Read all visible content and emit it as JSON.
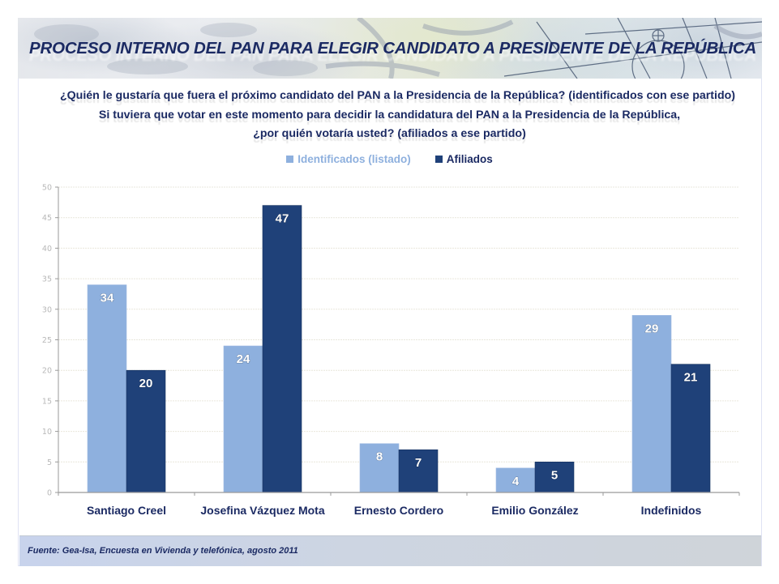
{
  "banner": {
    "title": "PROCESO INTERNO DEL PAN PARA ELEGIR CANDIDATO A PRESIDENTE DE LA REPÚBLICA"
  },
  "questions": {
    "line1": "¿Quién le gustaría que fuera el próximo candidato del PAN a la Presidencia de la República? (identificados con ese partido)",
    "line2": "Si tuviera que votar en este momento para decidir la candidatura del PAN a la Presidencia de la República,",
    "line3": "¿por quién votaría usted? (afiliados a ese partido)"
  },
  "legend": {
    "items": [
      {
        "label": "Identificados (listado)",
        "color": "#8eb0de"
      },
      {
        "label": "Afiliados",
        "color": "#1f4179"
      }
    ]
  },
  "footer": {
    "source": "Fuente: Gea-Isa, Encuesta en Vivienda y telefónica, agosto 2011"
  },
  "colors": {
    "title_text": "#1b2a63",
    "series_light": "#8eb0de",
    "series_dark": "#1f4179",
    "axis_tick_text": "#b8b8b8",
    "gridline": "#e9e7dc"
  },
  "chart_data": {
    "type": "bar",
    "title": "",
    "xlabel": "",
    "ylabel": "",
    "categories": [
      "Santiago Creel",
      "Josefina Vázquez Mota",
      "Ernesto Cordero",
      "Emilio González",
      "Indefinidos"
    ],
    "series": [
      {
        "name": "Identificados (listado)",
        "values": [
          34,
          24,
          8,
          4,
          29
        ]
      },
      {
        "name": "Afiliados",
        "values": [
          20,
          47,
          7,
          5,
          21
        ]
      }
    ],
    "ylim": [
      0,
      50
    ],
    "yticks": [
      0,
      5,
      10,
      15,
      20,
      25,
      30,
      35,
      40,
      45,
      50
    ],
    "grid": true,
    "legend_position": "top-center",
    "data_labels": true
  }
}
